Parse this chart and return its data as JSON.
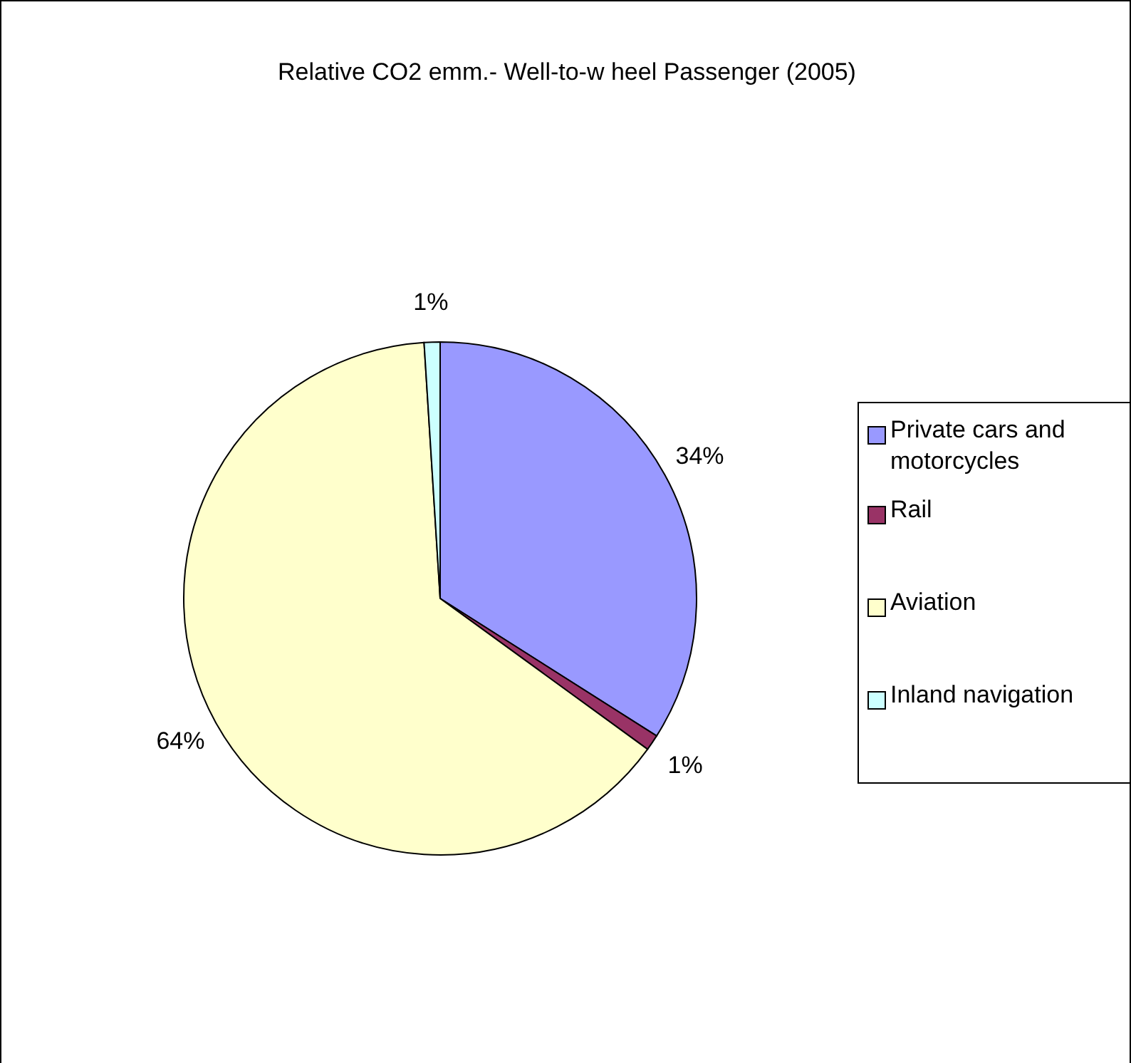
{
  "chart_data": {
    "type": "pie",
    "title": "Relative CO2 emm.- Well-to-w heel Passenger (2005)",
    "categories": [
      "Private cars and motorcycles",
      "Rail",
      "Aviation",
      "Inland navigation"
    ],
    "values": [
      34,
      1,
      64,
      1
    ],
    "colors": [
      "#9999ff",
      "#993366",
      "#ffffcc",
      "#ccffff"
    ],
    "value_labels": [
      "34%",
      "1%",
      "64%",
      "1%"
    ],
    "legend": "right"
  }
}
